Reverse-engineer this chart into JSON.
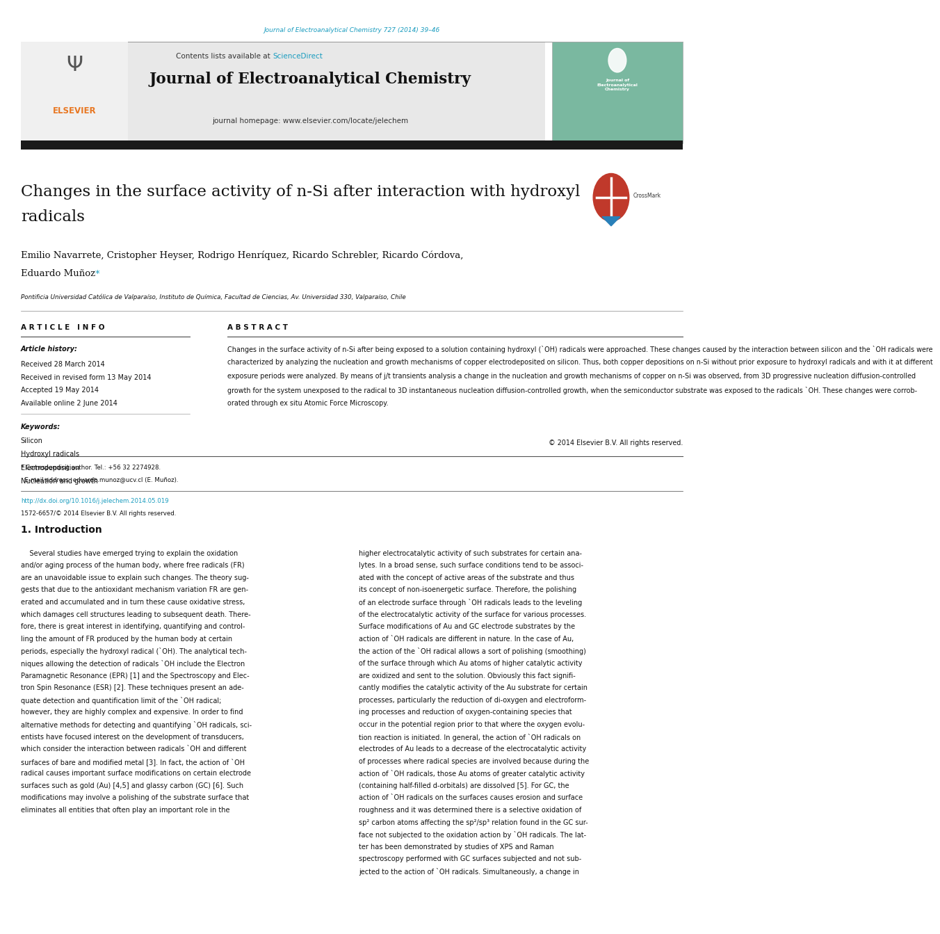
{
  "page_width": 9.92,
  "page_height": 13.23,
  "background_color": "#ffffff",
  "journal_ref_text": "Journal of Electroanalytical Chemistry 727 (2014) 39–46",
  "journal_ref_color": "#1a9cbf",
  "header_bg_color": "#e8e8e8",
  "contents_text": "Contents lists available at ",
  "sciencedirect_text": "ScienceDirect",
  "sciencedirect_color": "#1a9cbf",
  "journal_title": "Journal of Electroanalytical Chemistry",
  "journal_homepage": "journal homepage: www.elsevier.com/locate/jelechem",
  "elsevier_color": "#e87722",
  "black_bar_color": "#1a1a1a",
  "article_title_line1": "Changes in the surface activity of n-Si after interaction with hydroxyl",
  "article_title_line2": "radicals",
  "authors_line1": "Emilio Navarrete, Cristopher Heyser, Rodrigo Henríquez, Ricardo Schrebler, Ricardo Córdova,",
  "authors_line2": "Eduardo Muñoz",
  "asterisk_color": "#1a9cbf",
  "affiliation": "Pontificia Universidad Católica de Valparaíso, Instituto de Química, Facultad de Ciencias, Av. Universidad 330, Valparaíso, Chile",
  "article_info_header": "A R T I C L E   I N F O",
  "article_history_label": "Article history:",
  "received_text": "Received 28 March 2014",
  "revised_text": "Received in revised form 13 May 2014",
  "accepted_text": "Accepted 19 May 2014",
  "available_text": "Available online 2 June 2014",
  "keywords_label": "Keywords:",
  "keywords": [
    "Silicon",
    "Hydroxyl radicals",
    "Electrodeposition",
    "Nucleation and growth"
  ],
  "abstract_header": "A B S T R A C T",
  "abstract_lines": [
    "Changes in the surface activity of n-Si after being exposed to a solution containing hydroxyl (ˋOH) radicals were approached. These changes caused by the interaction between silicon and the ˋOH radicals were",
    "characterized by analyzing the nucleation and growth mechanisms of copper electrodeposited on silicon. Thus, both copper depositions on n-Si without prior exposure to hydroxyl radicals and with it at different",
    "exposure periods were analyzed. By means of j/t transients analysis a change in the nucleation and growth mechanisms of copper on n-Si was observed, from 3D progressive nucleation diffusion-controlled",
    "growth for the system unexposed to the radical to 3D instantaneous nucleation diffusion-controlled growth, when the semiconductor substrate was exposed to the radicals ˋOH. These changes were corrob-",
    "orated through ex situ Atomic Force Microscopy."
  ],
  "copyright_text": "© 2014 Elsevier B.V. All rights reserved.",
  "intro_header": "1. Introduction",
  "col1_lines": [
    "    Several studies have emerged trying to explain the oxidation",
    "and/or aging process of the human body, where free radicals (FR)",
    "are an unavoidable issue to explain such changes. The theory sug-",
    "gests that due to the antioxidant mechanism variation FR are gen-",
    "erated and accumulated and in turn these cause oxidative stress,",
    "which damages cell structures leading to subsequent death. There-",
    "fore, there is great interest in identifying, quantifying and control-",
    "ling the amount of FR produced by the human body at certain",
    "periods, especially the hydroxyl radical (ˋOH). The analytical tech-",
    "niques allowing the detection of radicals ˋOH include the Electron",
    "Paramagnetic Resonance (EPR) [1] and the Spectroscopy and Elec-",
    "tron Spin Resonance (ESR) [2]. These techniques present an ade-",
    "quate detection and quantification limit of the ˋOH radical;",
    "however, they are highly complex and expensive. In order to find",
    "alternative methods for detecting and quantifying ˋOH radicals, sci-",
    "entists have focused interest on the development of transducers,",
    "which consider the interaction between radicals ˋOH and different",
    "surfaces of bare and modified metal [3]. In fact, the action of ˋOH",
    "radical causes important surface modifications on certain electrode",
    "surfaces such as gold (Au) [4,5] and glassy carbon (GC) [6]. Such",
    "modifications may involve a polishing of the substrate surface that",
    "eliminates all entities that often play an important role in the"
  ],
  "col2_lines": [
    "higher electrocatalytic activity of such substrates for certain ana-",
    "lytes. In a broad sense, such surface conditions tend to be associ-",
    "ated with the concept of active areas of the substrate and thus",
    "its concept of non-isoenergetic surface. Therefore, the polishing",
    "of an electrode surface through ˋOH radicals leads to the leveling",
    "of the electrocatalytic activity of the surface for various processes.",
    "Surface modifications of Au and GC electrode substrates by the",
    "action of ˋOH radicals are different in nature. In the case of Au,",
    "the action of the ˋOH radical allows a sort of polishing (smoothing)",
    "of the surface through which Au atoms of higher catalytic activity",
    "are oxidized and sent to the solution. Obviously this fact signifi-",
    "cantly modifies the catalytic activity of the Au substrate for certain",
    "processes, particularly the reduction of di-oxygen and electroform-",
    "ing processes and reduction of oxygen-containing species that",
    "occur in the potential region prior to that where the oxygen evolu-",
    "tion reaction is initiated. In general, the action of ˋOH radicals on",
    "electrodes of Au leads to a decrease of the electrocatalytic activity",
    "of processes where radical species are involved because during the",
    "action of ˋOH radicals, those Au atoms of greater catalytic activity",
    "(containing half-filled d-orbitals) are dissolved [5]. For GC, the",
    "action of ˋOH radicals on the surfaces causes erosion and surface",
    "roughness and it was determined there is a selective oxidation of",
    "sp² carbon atoms affecting the sp²/sp³ relation found in the GC sur-",
    "face not subjected to the oxidation action by ˋOH radicals. The lat-",
    "ter has been demonstrated by studies of XPS and Raman",
    "spectroscopy performed with GC surfaces subjected and not sub-",
    "jected to the action of ˋOH radicals. Simultaneously, a change in"
  ],
  "footnote_line1": "* Corresponding author. Tel.: +56 32 2274928.",
  "footnote_line2": "  E-mail address: eduardo.munoz@ucv.cl (E. Muñoz).",
  "doi_text": "http://dx.doi.org/10.1016/j.jelechem.2014.05.019",
  "doi_color": "#1a9cbf",
  "issn_text": "1572-6657/© 2014 Elsevier B.V. All rights reserved.",
  "cover_journal_text": "Journal of\nElectroanalytical\nChemistry",
  "cover_bg_color": "#7ab8a0"
}
